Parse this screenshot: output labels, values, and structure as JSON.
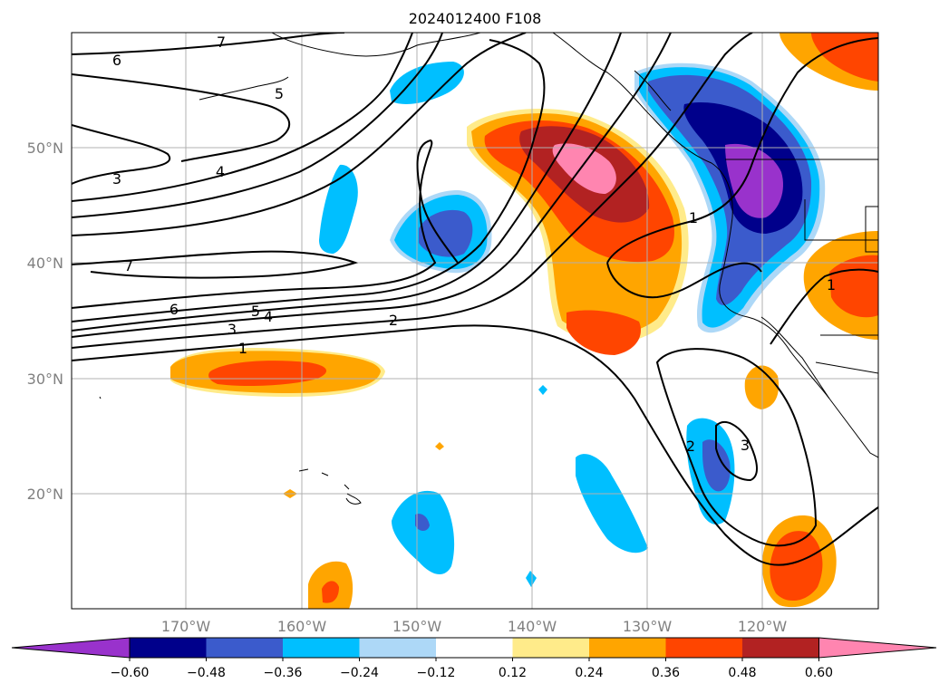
{
  "title": "2024012400 F108",
  "lat_labels": [
    "50°N",
    "40°N",
    "30°N",
    "20°N"
  ],
  "lon_labels": [
    "170°W",
    "160°W",
    "150°W",
    "140°W",
    "130°W",
    "120°W"
  ],
  "contour_labels": [
    "7",
    "6",
    "5",
    "3",
    "4",
    "7",
    "6",
    "5",
    "4",
    "3",
    "2",
    "1",
    "1",
    "1",
    "2",
    "3"
  ],
  "colorbar": {
    "ticks": [
      "−0.60",
      "−0.48",
      "−0.36",
      "−0.24",
      "−0.12",
      "0.12",
      "0.24",
      "0.36",
      "0.48",
      "0.60"
    ],
    "colors": [
      "#9932cc",
      "#00008b",
      "#3b5bcc",
      "#00bfff",
      "#add8f7",
      "#ffffff",
      "#ffeb8a",
      "#ffa500",
      "#ff4500",
      "#b22222",
      "#ff85b0"
    ]
  }
}
